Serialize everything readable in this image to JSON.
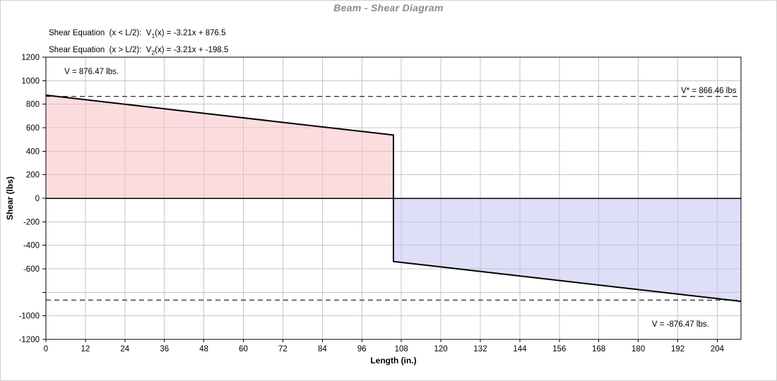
{
  "window": {
    "title": "Beam - Shear Diagram"
  },
  "equations": [
    {
      "prefix": "Shear Equation  (x < L/2):  V",
      "sub": "1",
      "suffix": "(x) = -3.21x + 876.5"
    },
    {
      "prefix": "Shear Equation  (x > L/2):  V",
      "sub": "2",
      "suffix": "(x) = -3.21x + -198.5"
    }
  ],
  "chart_data": {
    "type": "line",
    "title": "Beam - Shear Diagram",
    "xlabel": "Length (in.)",
    "ylabel": "Shear (lbs)",
    "xlim": [
      0,
      211.2
    ],
    "ylim": [
      -1200,
      1200
    ],
    "grid": true,
    "x_ticks": [
      0,
      12,
      24,
      36,
      48,
      60,
      72,
      84,
      96,
      108,
      120,
      132,
      144,
      156,
      168,
      180,
      192,
      204
    ],
    "y_ticks": [
      -1200,
      -1000,
      -800,
      -600,
      -400,
      -200,
      0,
      200,
      400,
      600,
      800,
      1000,
      1200
    ],
    "y_tick_labels": [
      "-1200",
      "-1000",
      "",
      "-600",
      "-400",
      "-200",
      "0",
      "200",
      "400",
      "600",
      "800",
      "1000",
      "1200"
    ],
    "series": [
      {
        "name": "shear-line",
        "points": [
          [
            0,
            876.47
          ],
          [
            105.6,
            537.53
          ],
          [
            105.6,
            -537.53
          ],
          [
            211.2,
            -876.47
          ]
        ]
      }
    ],
    "fills": [
      {
        "name": "positive-shear-area",
        "color": "rgba(250,188,192,0.5)",
        "points": [
          [
            0,
            0
          ],
          [
            0,
            876.47
          ],
          [
            105.6,
            537.53
          ],
          [
            105.6,
            0
          ]
        ]
      },
      {
        "name": "negative-shear-area",
        "color": "rgba(190,190,240,0.5)",
        "points": [
          [
            105.6,
            0
          ],
          [
            105.6,
            -537.53
          ],
          [
            211.2,
            -876.47
          ],
          [
            211.2,
            0
          ]
        ]
      }
    ],
    "reference_lines": [
      {
        "name": "allowable-shear-positive",
        "y": 866.46
      },
      {
        "name": "allowable-shear-negative",
        "y": -866.46
      }
    ],
    "annotations": [
      {
        "text": "V = 876.47 lbs.",
        "x": 5.6,
        "y": 1080,
        "anchor": "start"
      },
      {
        "text": "V* = 866.46 lbs",
        "x": 209.8,
        "y": 918,
        "anchor": "end"
      },
      {
        "text": "V = -876.47 lbs.",
        "x": 201.5,
        "y": -1068,
        "anchor": "end"
      }
    ]
  },
  "colors": {
    "title": "#8b8b8b",
    "grid": "#c6c6c6",
    "axis": "#000000",
    "line": "#000000",
    "dashed": "#2b2b2b",
    "text": "#000000",
    "frame": "#d0d0d0"
  }
}
